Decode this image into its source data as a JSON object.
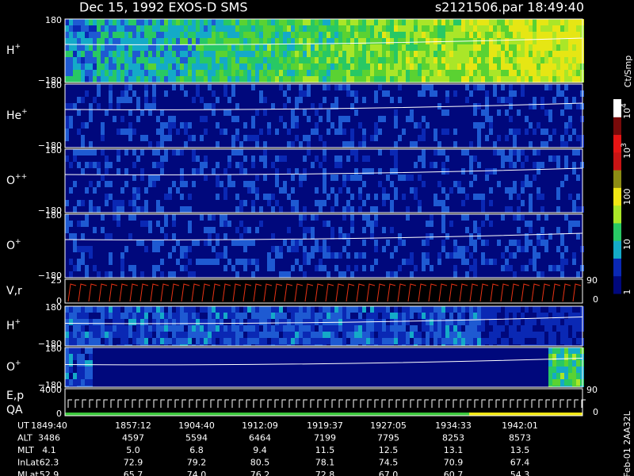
{
  "header": {
    "title": "Dec 15, 1992   EXOS-D SMS",
    "file_time": "s2121506.par  18:49:40"
  },
  "panels": [
    {
      "label": "H",
      "sup": "+",
      "top": "180",
      "bottom": "−180"
    },
    {
      "label": "He",
      "sup": "+",
      "top": "180",
      "bottom": "−180"
    },
    {
      "label": "O",
      "sup": "++",
      "top": "180",
      "bottom": "−180"
    },
    {
      "label": "O",
      "sup": "+",
      "top": "180",
      "bottom": "−180"
    },
    {
      "label": "V,r",
      "top": "25",
      "bottom": "0",
      "right_top": "90",
      "right_bottom": "0"
    },
    {
      "label": "H",
      "sup": "+",
      "top": "180",
      "bottom": "−180"
    },
    {
      "label": "O",
      "sup": "+",
      "top": "180",
      "bottom": "−180"
    },
    {
      "label": "E,p",
      "label2": "QA",
      "top": "4000",
      "bottom": "0",
      "right_top": "90",
      "right_bottom": "0"
    }
  ],
  "colorbar": {
    "unit": "Ct/Smp",
    "ticks": [
      {
        "text": "10",
        "sup": "4"
      },
      {
        "text": "10",
        "sup": "3"
      },
      {
        "text": "100"
      },
      {
        "text": "10"
      },
      {
        "text": "1"
      }
    ]
  },
  "footer": {
    "rows": [
      {
        "label": "UT",
        "values": [
          "1849:40",
          "1857:12",
          "1904:40",
          "1912:09",
          "1919:37",
          "1927:05",
          "1934:33",
          "1942:01"
        ]
      },
      {
        "label": "ALT",
        "values": [
          "3486",
          "4597",
          "5594",
          "6464",
          "7199",
          "7795",
          "8253",
          "8573"
        ]
      },
      {
        "label": "MLT",
        "values": [
          "4.1",
          "5.0",
          "6.8",
          "9.4",
          "11.5",
          "12.5",
          "13.1",
          "13.5"
        ]
      },
      {
        "label": "InLat",
        "values": [
          "62.3",
          "72.9",
          "79.2",
          "80.5",
          "78.1",
          "74.5",
          "70.9",
          "67.4"
        ]
      },
      {
        "label": "MLat",
        "values": [
          "52.9",
          "65.7",
          "74.0",
          "76.2",
          "72.8",
          "67.0",
          "60.7",
          "54.3"
        ]
      }
    ],
    "stamp": "Feb-01 2AA32L"
  }
}
